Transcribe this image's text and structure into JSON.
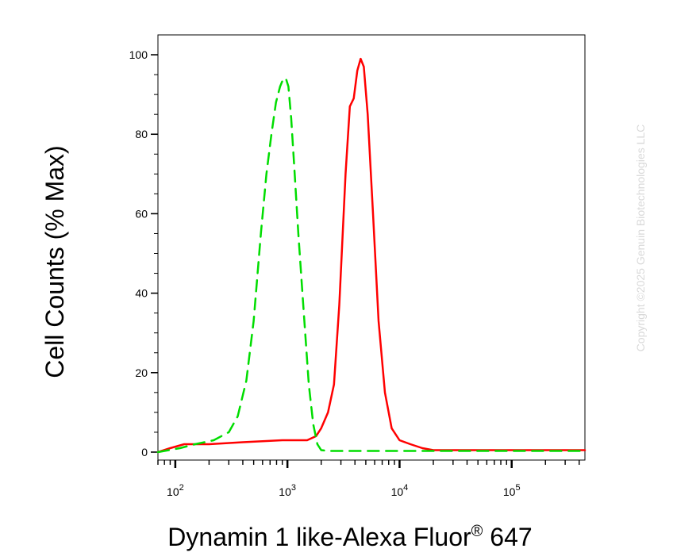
{
  "chart_data": {
    "type": "line",
    "title": "",
    "xlabel": "Dynamin 1 like-Alexa Fluor",
    "xlabel_superscript": "®",
    "xlabel_suffix": " 647",
    "ylabel": "Cell Counts (% Max)",
    "x_scale": "log",
    "xlim": [
      70,
      450000
    ],
    "ylim": [
      -2,
      105
    ],
    "y_ticks": [
      "0",
      "20",
      "40",
      "60",
      "80",
      "100"
    ],
    "x_ticks": [
      {
        "base": "10",
        "exp": "2"
      },
      {
        "base": "10",
        "exp": "3"
      },
      {
        "base": "10",
        "exp": "4"
      },
      {
        "base": "10",
        "exp": "5"
      }
    ],
    "grid": false,
    "series": [
      {
        "color": "#ff0000",
        "style": "solid",
        "x": [
          70,
          90,
          120,
          200,
          400,
          900,
          1500,
          1800,
          2000,
          2300,
          2600,
          2900,
          3300,
          3600,
          3900,
          4200,
          4500,
          4800,
          5200,
          5800,
          6500,
          7400,
          8500,
          10000,
          12500,
          16000,
          20000,
          30000,
          60000,
          150000,
          450000
        ],
        "y": [
          0,
          1,
          2,
          2,
          2.5,
          3,
          3,
          4,
          6,
          10,
          17,
          37,
          70,
          87,
          89,
          96,
          99,
          97,
          85,
          60,
          33,
          15,
          6,
          3,
          2,
          1,
          0.5,
          0.5,
          0.5,
          0.5,
          0.5
        ]
      },
      {
        "color": "#00dd00",
        "style": "dashed",
        "x": [
          70,
          110,
          150,
          220,
          300,
          360,
          430,
          500,
          580,
          650,
          720,
          790,
          860,
          920,
          970,
          1020,
          1080,
          1150,
          1250,
          1400,
          1550,
          1700,
          1850,
          2000,
          2300,
          3000,
          5000,
          20000,
          450000
        ],
        "y": [
          0,
          1,
          2,
          3,
          5,
          9,
          18,
          33,
          55,
          70,
          80,
          88,
          92,
          94,
          94,
          92,
          84,
          72,
          55,
          35,
          17,
          7,
          2,
          0.5,
          0.3,
          0.3,
          0.3,
          0.3,
          0.3
        ]
      }
    ]
  },
  "watermark": "Copyright ©2025 Genuin Biotechnologies LLC"
}
